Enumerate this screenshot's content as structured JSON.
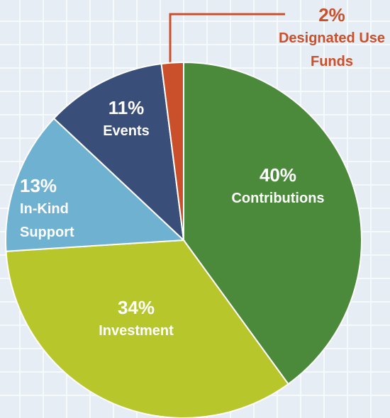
{
  "chart_data": {
    "type": "pie",
    "categories": [
      "Contributions",
      "Investment",
      "In-Kind Support",
      "Events",
      "Designated Use Funds"
    ],
    "values": [
      40,
      34,
      13,
      11,
      2
    ],
    "value_labels": [
      "40%",
      "34%",
      "13%",
      "11%",
      "2%"
    ],
    "colors": [
      "#4b8a3a",
      "#b6c62b",
      "#6fb1d0",
      "#3a4e7a",
      "#c9502b"
    ]
  }
}
